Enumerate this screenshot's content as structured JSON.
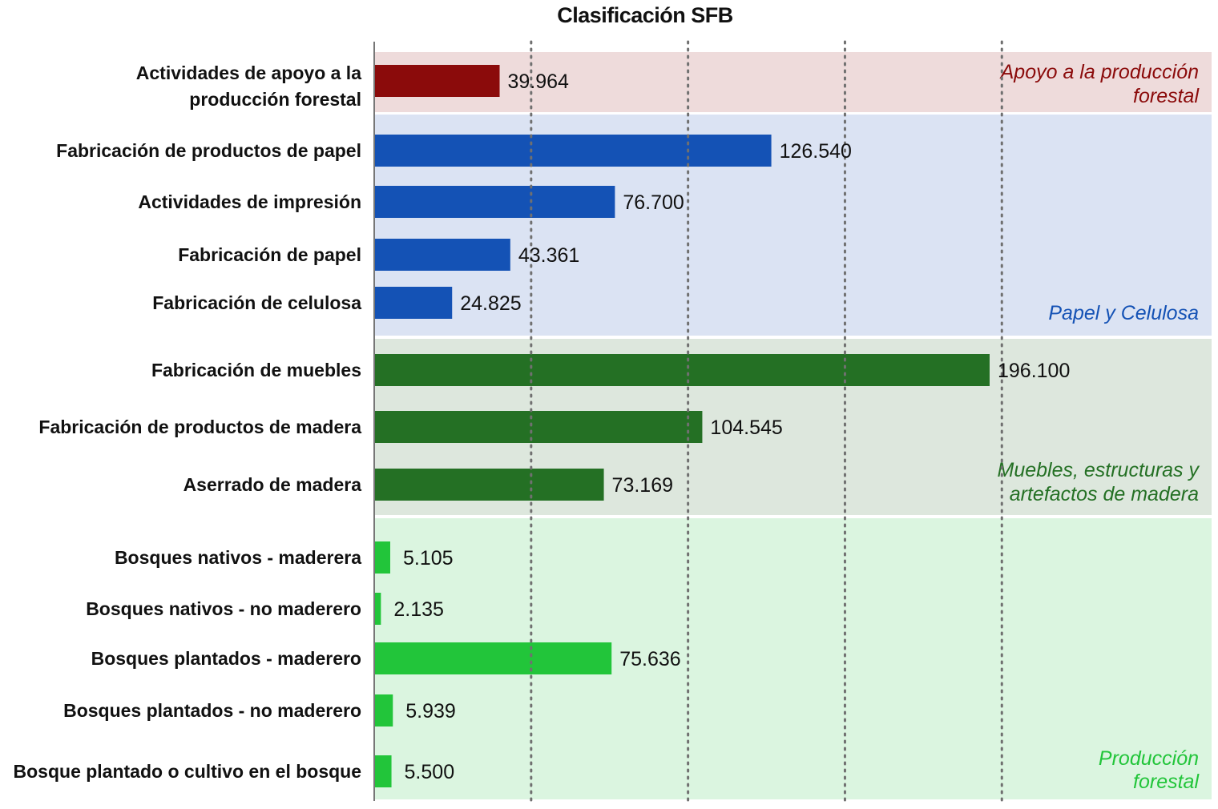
{
  "chart_data": {
    "type": "bar",
    "orientation": "horizontal",
    "title": "Clasificación SFB",
    "xlabel": "",
    "ylabel": "",
    "xlim": [
      0,
      210000
    ],
    "grid": "vertical dotted",
    "categories": [
      "Actividades de apoyo a la producción forestal",
      "Fabricación de productos de papel",
      "Actividades de impresión",
      "Fabricación de papel",
      "Fabricación de celulosa",
      "Fabricación de muebles",
      "Fabricación de productos de madera",
      "Aserrado de madera",
      "Bosques nativos - maderera",
      "Bosques nativos - no maderero",
      "Bosques plantados - maderero",
      "Bosques plantados - no maderero",
      "Bosque plantado o cultivo en el bosque"
    ],
    "values": [
      39964,
      126540,
      76700,
      43361,
      24825,
      196100,
      104545,
      73169,
      5105,
      2135,
      75636,
      5939,
      5500
    ],
    "value_labels": [
      "39.964",
      "126.540",
      "76.700",
      "43.361",
      "24.825",
      "196.100",
      "104.545",
      "73.169",
      "5.105",
      "2.135",
      "75.636",
      "5.939",
      "5.500"
    ],
    "groups": [
      {
        "label": "Apoyo a la producción forestal",
        "label_lines": [
          "Apoyo a la producción",
          "forestal"
        ],
        "members": [
          0
        ],
        "bar_color": "#8b0b0b",
        "band_color": "#eedbdb",
        "label_color": "#8b0b0b"
      },
      {
        "label": "Papel y Celulosa",
        "label_lines": [
          "Papel y Celulosa"
        ],
        "members": [
          1,
          2,
          3,
          4
        ],
        "bar_color": "#1452b5",
        "band_color": "#dbe3f3",
        "label_color": "#1452b5"
      },
      {
        "label": "Muebles, estructuras y artefactos de madera",
        "label_lines": [
          "Muebles, estructuras y",
          "artefactos de madera"
        ],
        "members": [
          5,
          6,
          7
        ],
        "bar_color": "#247024",
        "band_color": "#dde7dd",
        "label_color": "#247024"
      },
      {
        "label": "Producción forestal",
        "label_lines": [
          "Producción",
          "forestal"
        ],
        "members": [
          8,
          9,
          10,
          11,
          12
        ],
        "bar_color": "#22c53a",
        "band_color": "#dbf5e0",
        "label_color": "#22c53a"
      }
    ]
  }
}
